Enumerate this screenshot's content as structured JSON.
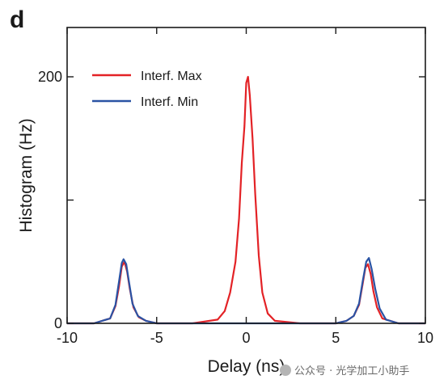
{
  "panel_label": "d",
  "watermark": "公众号 · 光学加工小助手",
  "chart_data": {
    "type": "line",
    "xlabel": "Delay (ns)",
    "ylabel": "Histogram (Hz)",
    "xlim": [
      -10,
      10
    ],
    "ylim": [
      0,
      240
    ],
    "x_ticks": [
      -10,
      -5,
      0,
      5,
      10
    ],
    "y_ticks": [
      0,
      200
    ],
    "y_minor_ticks": [
      100
    ],
    "grid": false,
    "legend_position": "top-left",
    "series": [
      {
        "name": "Interf. Max",
        "color": "#e32226",
        "x": [
          -10,
          -8.5,
          -7.6,
          -7.3,
          -7.1,
          -6.95,
          -6.8,
          -6.65,
          -6.5,
          -6.3,
          -6.0,
          -5.6,
          -5.0,
          -3.0,
          -1.6,
          -1.2,
          -0.9,
          -0.6,
          -0.4,
          -0.25,
          -0.1,
          0.0,
          0.1,
          0.2,
          0.35,
          0.5,
          0.7,
          0.9,
          1.2,
          1.6,
          3.0,
          5.0,
          5.6,
          6.0,
          6.3,
          6.5,
          6.65,
          6.8,
          6.95,
          7.1,
          7.3,
          7.6,
          8.5,
          10
        ],
        "y": [
          0,
          0,
          4,
          14,
          30,
          46,
          50,
          42,
          28,
          13,
          5,
          2,
          0,
          0,
          3,
          10,
          25,
          50,
          85,
          130,
          160,
          195,
          200,
          185,
          150,
          105,
          55,
          25,
          8,
          2,
          0,
          0,
          2,
          6,
          15,
          32,
          45,
          48,
          40,
          26,
          13,
          4,
          0,
          0
        ]
      },
      {
        "name": "Interf. Min",
        "color": "#2a53a4",
        "x": [
          -10,
          -8.5,
          -7.6,
          -7.3,
          -7.1,
          -6.95,
          -6.85,
          -6.7,
          -6.55,
          -6.35,
          -6.05,
          -5.6,
          -5.0,
          5.0,
          5.6,
          6.0,
          6.3,
          6.5,
          6.7,
          6.85,
          7.0,
          7.2,
          7.45,
          7.8,
          8.5,
          10
        ],
        "y": [
          0,
          0,
          4,
          15,
          34,
          49,
          52,
          48,
          34,
          16,
          6,
          2,
          0,
          0,
          2,
          6,
          16,
          34,
          50,
          53,
          44,
          28,
          12,
          3,
          0,
          0
        ]
      }
    ]
  }
}
